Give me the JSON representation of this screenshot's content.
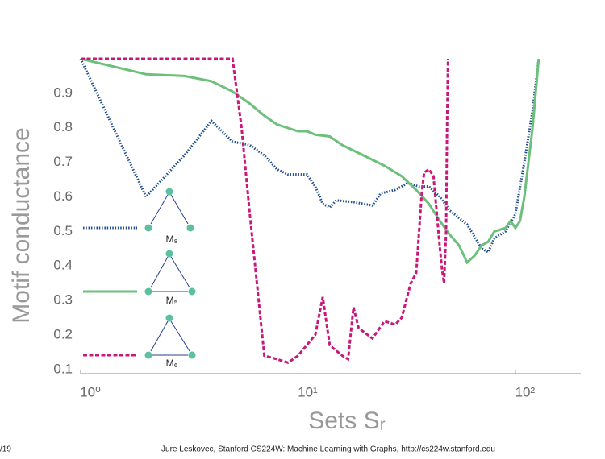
{
  "chart_data": {
    "type": "line",
    "xlabel": "Sets Sᵣ",
    "ylabel": "Motif conductance",
    "footer_left": "/19",
    "footer": "Jure Leskovec, Stanford CS224W: Machine Learning with Graphs, http://cs224w.stanford.edu",
    "xscale": "log",
    "xlim": [
      1,
      200
    ],
    "ylim": [
      0.088,
      1.0
    ],
    "xticks": [
      {
        "value": 1,
        "label": "10⁰"
      },
      {
        "value": 10,
        "label": "10¹"
      },
      {
        "value": 100,
        "label": "10²"
      }
    ],
    "yticks": [
      0.1,
      0.2,
      0.3,
      0.4,
      0.5,
      0.6,
      0.7,
      0.8,
      0.9
    ],
    "series": [
      {
        "name": "M₈",
        "color": "#1f4e8c",
        "style": "dotted",
        "x": [
          1,
          2,
          3,
          4,
          5,
          6,
          7,
          8,
          9,
          11,
          12,
          13,
          14,
          15,
          18,
          20,
          22,
          24,
          28,
          32,
          36,
          40,
          45,
          50,
          60,
          70,
          75,
          80,
          90,
          100,
          110,
          120,
          128
        ],
        "values": [
          1.0,
          0.6,
          0.72,
          0.82,
          0.76,
          0.75,
          0.72,
          0.68,
          0.665,
          0.665,
          0.63,
          0.58,
          0.57,
          0.59,
          0.585,
          0.58,
          0.575,
          0.61,
          0.62,
          0.64,
          0.63,
          0.63,
          0.6,
          0.56,
          0.52,
          0.45,
          0.44,
          0.48,
          0.5,
          0.55,
          0.7,
          0.85,
          1.0
        ]
      },
      {
        "name": "M₅",
        "color": "#6cc07c",
        "style": "solid",
        "x": [
          1,
          2,
          3,
          4,
          5,
          6,
          7,
          8,
          10,
          11,
          12,
          14,
          16,
          20,
          25,
          30,
          35,
          40,
          45,
          50,
          55,
          60,
          65,
          70,
          75,
          80,
          90,
          95,
          100,
          105,
          110,
          120,
          128
        ],
        "values": [
          1.0,
          0.955,
          0.95,
          0.935,
          0.905,
          0.87,
          0.835,
          0.81,
          0.79,
          0.79,
          0.78,
          0.775,
          0.75,
          0.72,
          0.69,
          0.66,
          0.62,
          0.58,
          0.53,
          0.49,
          0.46,
          0.41,
          0.43,
          0.46,
          0.47,
          0.5,
          0.51,
          0.53,
          0.51,
          0.53,
          0.6,
          0.8,
          1.0
        ]
      },
      {
        "name": "M₆",
        "color": "#c8197a",
        "style": "dashed",
        "x": [
          1,
          5,
          5.5,
          6,
          7,
          8,
          9,
          10,
          12,
          13,
          14,
          16,
          17,
          18,
          19,
          22,
          25,
          28,
          30,
          33,
          35,
          37,
          38,
          40,
          42,
          45,
          46,
          47,
          48,
          48.5,
          49
        ],
        "values": [
          1.0,
          1.0,
          0.8,
          0.55,
          0.14,
          0.13,
          0.12,
          0.14,
          0.2,
          0.31,
          0.17,
          0.14,
          0.13,
          0.28,
          0.22,
          0.19,
          0.24,
          0.23,
          0.25,
          0.35,
          0.38,
          0.6,
          0.67,
          0.68,
          0.66,
          0.45,
          0.39,
          0.35,
          0.5,
          0.8,
          1.0
        ]
      }
    ]
  }
}
